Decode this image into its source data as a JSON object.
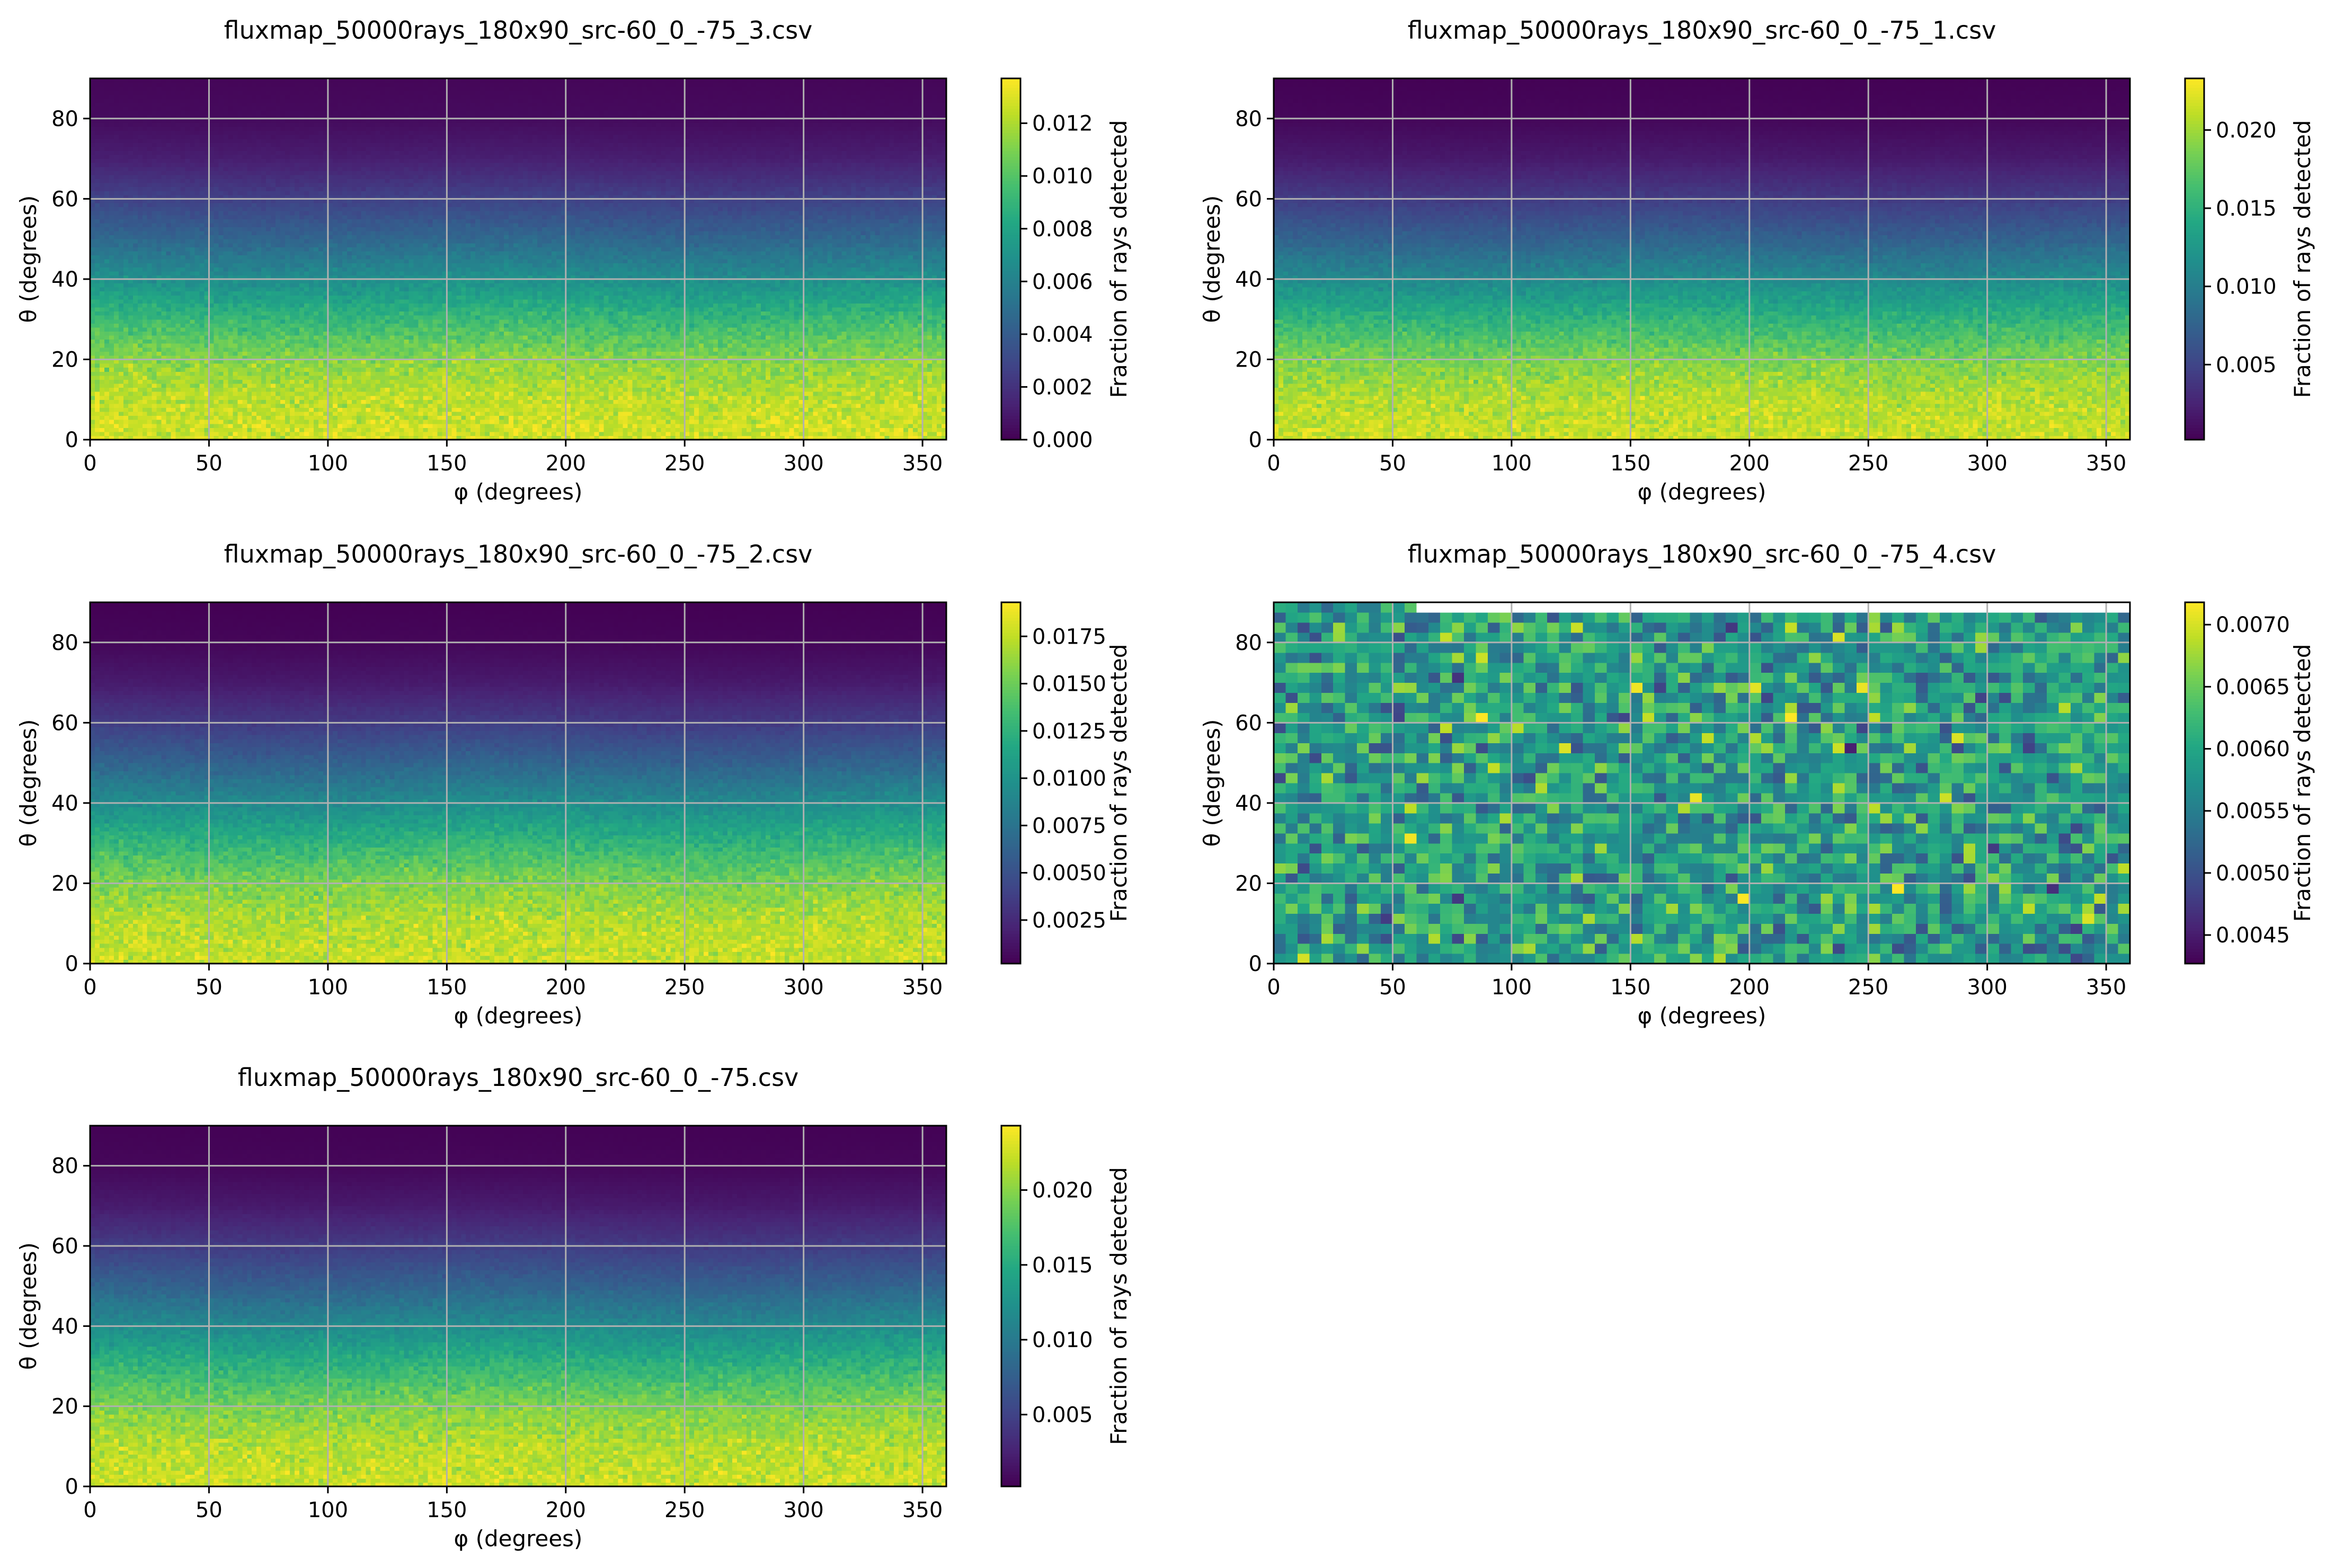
{
  "figure": {
    "panel_xlabel": "φ (degrees)",
    "panel_ylabel": "θ (degrees)",
    "colorbar_label": "Fraction of rays detected",
    "colormap": "viridis",
    "grid_color": "#b0b0b0"
  },
  "chart_data": [
    {
      "type": "heatmap",
      "title": "fluxmap_50000rays_180x90_src-60_0_-75_3.csv",
      "xlabel": "φ (degrees)",
      "ylabel": "θ (degrees)",
      "xlim": [
        0,
        360
      ],
      "ylim": [
        0,
        90
      ],
      "xticks": [
        0,
        50,
        100,
        150,
        200,
        250,
        300,
        350
      ],
      "yticks": [
        0,
        20,
        40,
        60,
        80
      ],
      "grid": true,
      "bins": {
        "phi": 180,
        "theta": 90
      },
      "profile": {
        "theta": [
          0,
          10,
          20,
          30,
          40,
          50,
          60,
          70,
          80,
          90
        ],
        "value": [
          0.0128,
          0.0124,
          0.0113,
          0.0092,
          0.0068,
          0.0046,
          0.0027,
          0.0012,
          0.0004,
          0.0002
        ]
      },
      "colorbar": {
        "label": "Fraction of rays detected",
        "min": 0.0,
        "max": 0.0137,
        "ticks": [
          "0.000",
          "0.002",
          "0.004",
          "0.006",
          "0.008",
          "0.010",
          "0.012"
        ]
      }
    },
    {
      "type": "heatmap",
      "title": "fluxmap_50000rays_180x90_src-60_0_-75_1.csv",
      "xlabel": "φ (degrees)",
      "ylabel": "θ (degrees)",
      "xlim": [
        0,
        360
      ],
      "ylim": [
        0,
        90
      ],
      "xticks": [
        0,
        50,
        100,
        150,
        200,
        250,
        300,
        350
      ],
      "yticks": [
        0,
        20,
        40,
        60,
        80
      ],
      "grid": true,
      "bins": {
        "phi": 180,
        "theta": 90
      },
      "profile": {
        "theta": [
          0,
          10,
          20,
          30,
          40,
          50,
          60,
          70,
          80,
          90
        ],
        "value": [
          0.0215,
          0.0208,
          0.0188,
          0.0152,
          0.0112,
          0.0075,
          0.0043,
          0.0019,
          0.0006,
          0.0003
        ]
      },
      "colorbar": {
        "label": "Fraction of rays detected",
        "min": 0.0002,
        "max": 0.0233,
        "ticks": [
          "0.005",
          "0.010",
          "0.015",
          "0.020"
        ]
      }
    },
    {
      "type": "heatmap",
      "title": "fluxmap_50000rays_180x90_src-60_0_-75_2.csv",
      "xlabel": "φ (degrees)",
      "ylabel": "θ (degrees)",
      "xlim": [
        0,
        360
      ],
      "ylim": [
        0,
        90
      ],
      "xticks": [
        0,
        50,
        100,
        150,
        200,
        250,
        300,
        350
      ],
      "yticks": [
        0,
        20,
        40,
        60,
        80
      ],
      "grid": true,
      "bins": {
        "phi": 180,
        "theta": 90
      },
      "profile": {
        "theta": [
          0,
          10,
          20,
          30,
          40,
          50,
          60,
          70,
          80,
          90
        ],
        "value": [
          0.0178,
          0.0172,
          0.0156,
          0.0127,
          0.0094,
          0.0063,
          0.0036,
          0.0016,
          0.0005,
          0.0002
        ]
      },
      "colorbar": {
        "label": "Fraction of rays detected",
        "min": 0.0002,
        "max": 0.0193,
        "ticks": [
          "0.0025",
          "0.0050",
          "0.0075",
          "0.0100",
          "0.0125",
          "0.0150",
          "0.0175"
        ]
      }
    },
    {
      "type": "heatmap",
      "title": "fluxmap_50000rays_180x90_src-60_0_-75_4.csv",
      "xlabel": "φ (degrees)",
      "ylabel": "θ (degrees)",
      "xlim": [
        0,
        360
      ],
      "ylim": [
        0,
        90
      ],
      "xticks": [
        0,
        50,
        100,
        150,
        200,
        250,
        300,
        350
      ],
      "yticks": [
        0,
        20,
        40,
        60,
        80
      ],
      "grid": true,
      "bins": {
        "phi": 72,
        "theta": 36
      },
      "noise": {
        "mean": 0.0059,
        "sd": 0.00045
      },
      "masked_region": {
        "phi": [
          60,
          360
        ],
        "theta": [
          87.5,
          90
        ]
      },
      "colorbar": {
        "label": "Fraction of rays detected",
        "min": 0.00427,
        "max": 0.00718,
        "ticks": [
          "0.0045",
          "0.0050",
          "0.0055",
          "0.0060",
          "0.0065",
          "0.0070"
        ]
      }
    },
    {
      "type": "heatmap",
      "title": "fluxmap_50000rays_180x90_src-60_0_-75.csv",
      "xlabel": "φ (degrees)",
      "ylabel": "θ (degrees)",
      "xlim": [
        0,
        360
      ],
      "ylim": [
        0,
        90
      ],
      "xticks": [
        0,
        50,
        100,
        150,
        200,
        250,
        300,
        350
      ],
      "yticks": [
        0,
        20,
        40,
        60,
        80
      ],
      "grid": true,
      "bins": {
        "phi": 180,
        "theta": 90
      },
      "profile": {
        "theta": [
          0,
          10,
          20,
          30,
          40,
          50,
          60,
          70,
          80,
          90
        ],
        "value": [
          0.0225,
          0.0217,
          0.0196,
          0.0159,
          0.0117,
          0.0078,
          0.0045,
          0.002,
          0.0006,
          0.0003
        ]
      },
      "colorbar": {
        "label": "Fraction of rays detected",
        "min": 0.0002,
        "max": 0.0243,
        "ticks": [
          "0.005",
          "0.010",
          "0.015",
          "0.020"
        ]
      }
    }
  ]
}
